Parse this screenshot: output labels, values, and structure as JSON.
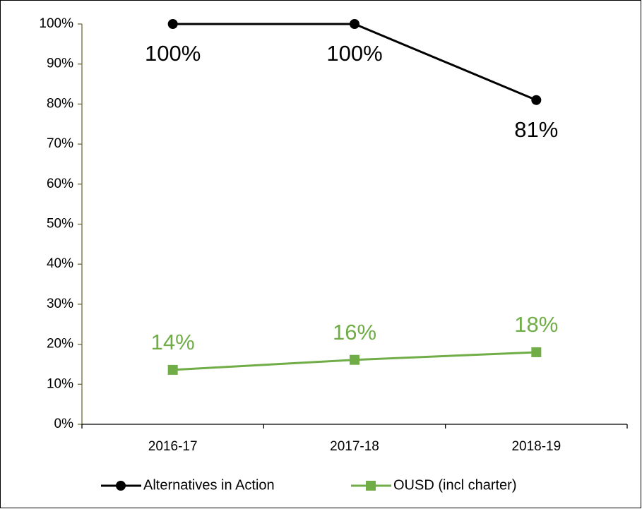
{
  "chart_data": {
    "type": "line",
    "categories": [
      "2016-17",
      "2017-18",
      "2018-19"
    ],
    "series": [
      {
        "name": "Alternatives in Action",
        "color": "#000000",
        "marker": "circle",
        "values": [
          100,
          100,
          81
        ],
        "value_labels": [
          "100%",
          "100%",
          "81%"
        ]
      },
      {
        "name": "OUSD (incl charter)",
        "color": "#70ad47",
        "marker": "square",
        "values": [
          13.6,
          16.1,
          18
        ],
        "value_labels": [
          "14%",
          "16%",
          "18%"
        ]
      }
    ],
    "ylim": [
      0,
      100
    ],
    "yticks": [
      {
        "value": 0,
        "label": "0%"
      },
      {
        "value": 10,
        "label": "10%"
      },
      {
        "value": 20,
        "label": "20%"
      },
      {
        "value": 30,
        "label": "30%"
      },
      {
        "value": 40,
        "label": "40%"
      },
      {
        "value": 50,
        "label": "50%"
      },
      {
        "value": 60,
        "label": "60%"
      },
      {
        "value": 70,
        "label": "70%"
      },
      {
        "value": 80,
        "label": "80%"
      },
      {
        "value": 90,
        "label": "90%"
      },
      {
        "value": 100,
        "label": "100%"
      }
    ],
    "grid": false,
    "legend": "bottom"
  }
}
